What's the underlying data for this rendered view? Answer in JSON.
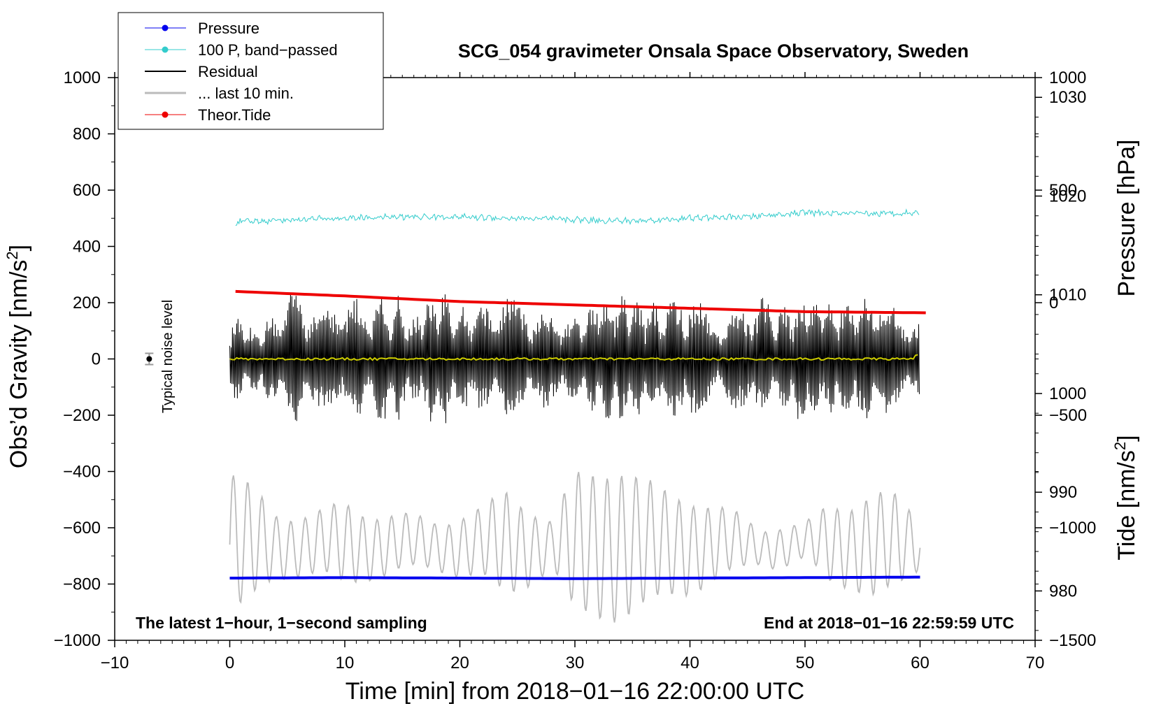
{
  "chart_data": {
    "type": "line",
    "title": "SCG_054 gravimeter Onsala Space Observatory, Sweden",
    "xlabel": "Time [min] from 2018−01−16 22:00:00 UTC",
    "ylabel_left_main": "Obs’d Gravity [nm/s",
    "ylabel_left_sup": "2",
    "ylabel_left_end": "]",
    "ylabel_right_pressure": "Pressure [hPa]",
    "ylabel_right_tide_main": "Tide [nm/s",
    "ylabel_right_tide_sup": "2",
    "ylabel_right_tide_end": "]",
    "xlim": [
      -10,
      70
    ],
    "ylim": [
      -1000,
      1000
    ],
    "pressure_lim": [
      975,
      1032
    ],
    "pressure_axis_range": [
      976,
      1032
    ],
    "tide_lim": [
      -1500,
      1000
    ],
    "x_ticks": [
      -10,
      0,
      10,
      20,
      30,
      40,
      50,
      60,
      70
    ],
    "x_tick_labels": [
      "−10",
      "0",
      "10",
      "20",
      "30",
      "40",
      "50",
      "60",
      "70"
    ],
    "y_ticks": [
      1000,
      800,
      600,
      400,
      200,
      0,
      -200,
      -400,
      -600,
      -800,
      -1000
    ],
    "y_tick_labels": [
      "1000",
      "800",
      "600",
      "400",
      "200",
      "0",
      "−200",
      "−400",
      "−600",
      "−800",
      "−1000"
    ],
    "pressure_ticks": [
      980,
      990,
      1000,
      1010,
      1020,
      1030
    ],
    "pressure_tick_labels": [
      "980",
      "990",
      "1000",
      "1010",
      "1020",
      "1030"
    ],
    "tide_ticks": [
      1000,
      500,
      0,
      -500,
      -1000,
      -1500
    ],
    "tide_tick_labels": [
      "1000",
      "500",
      "0",
      "−500",
      "−1000",
      "−1500"
    ],
    "legend": [
      {
        "label": "Pressure",
        "color": "#0000ee",
        "marker": true
      },
      {
        "label": "100 P, band−passed",
        "color": "#33cccc",
        "marker": true
      },
      {
        "label": "Residual",
        "color": "#000000",
        "marker": false
      },
      {
        "label": "... last 10 min.",
        "color": "#bbbbbb",
        "marker": false
      },
      {
        "label": "Theor.Tide",
        "color": "#ee0000",
        "marker": true
      }
    ],
    "noise_label": "Typical noise level",
    "noise_level": {
      "x": -7,
      "y": 0,
      "err": 20
    },
    "bottom_left_note": "The latest 1−hour, 1−second sampling",
    "bottom_right_note": "End at 2018−01−16 22:59:59 UTC",
    "series": [
      {
        "name": "Pressure",
        "axis": "pressure",
        "color": "#0000ee",
        "x": [
          0,
          10,
          20,
          30,
          40,
          50,
          60
        ],
        "values": [
          981.3,
          981.35,
          981.3,
          981.25,
          981.3,
          981.35,
          981.4
        ]
      },
      {
        "name": "100 P, band−passed",
        "axis": "gravity",
        "color": "#33cccc",
        "x": [
          0,
          5,
          10,
          15,
          20,
          25,
          30,
          35,
          40,
          45,
          50,
          55,
          60
        ],
        "values": [
          485,
          495,
          500,
          505,
          505,
          500,
          495,
          490,
          500,
          505,
          520,
          515,
          520
        ]
      },
      {
        "name": "Residual envelope",
        "axis": "gravity",
        "color": "#000000",
        "x": [
          0,
          2,
          4,
          6,
          8,
          10,
          12,
          14,
          16,
          18,
          20,
          22,
          24,
          26,
          28,
          30,
          32,
          34,
          36,
          38,
          40,
          42,
          44,
          46,
          48,
          50,
          52,
          54,
          56,
          58,
          60
        ],
        "values": [
          150,
          120,
          170,
          260,
          170,
          240,
          190,
          260,
          150,
          250,
          200,
          190,
          230,
          210,
          170,
          150,
          220,
          250,
          200,
          210,
          260,
          150,
          180,
          230,
          180,
          260,
          200,
          220,
          250,
          180,
          150
        ]
      },
      {
        "name": "Yellow",
        "axis": "gravity",
        "color": "#cccc00",
        "x": [
          0,
          59.5,
          59.7,
          60
        ],
        "values": [
          0,
          0,
          25,
          0
        ]
      },
      {
        "name": "... last 10 min. envelope",
        "axis": "gravity",
        "color": "#bbbbbb",
        "center": -660,
        "x": [
          0,
          2,
          4,
          6,
          8,
          10,
          12,
          14,
          16,
          18,
          20,
          22,
          24,
          26,
          28,
          30,
          32,
          34,
          36,
          38,
          40,
          42,
          44,
          46,
          48,
          50,
          52,
          54,
          56,
          58,
          60
        ],
        "values": [
          250,
          190,
          110,
          100,
          110,
          140,
          110,
          100,
          90,
          80,
          100,
          120,
          180,
          130,
          80,
          240,
          250,
          260,
          220,
          180,
          160,
          130,
          100,
          60,
          70,
          60,
          130,
          140,
          180,
          160,
          80
        ]
      },
      {
        "name": "Theor.Tide",
        "axis": "tide",
        "color": "#ee0000",
        "x": [
          0.5,
          10,
          20,
          30,
          40,
          50,
          60.5
        ],
        "values": [
          50,
          30,
          5,
          -10,
          -25,
          -40,
          -45
        ]
      }
    ]
  }
}
